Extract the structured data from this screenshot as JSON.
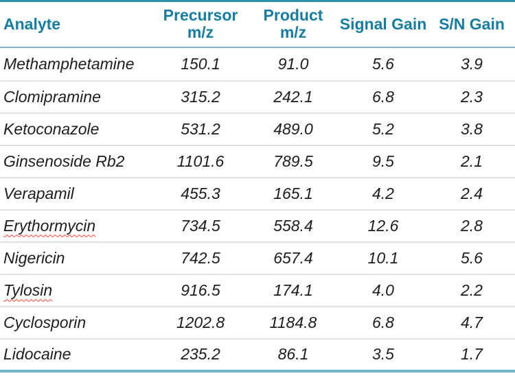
{
  "colors": {
    "header_text": "#157CA4",
    "top_border": "#2F90AE",
    "header_rule": "#7BB5C9",
    "row_rule": "#E2E2E2",
    "bottom_border": "#6FB3CA",
    "body_text": "#1D1D1D",
    "spellcheck_underline": "#FF3B30",
    "background": "#FFFFFF"
  },
  "table": {
    "columns": [
      {
        "label": "Analyte"
      },
      {
        "label": "Precursor\nm/z"
      },
      {
        "label": "Product\nm/z"
      },
      {
        "label": "Signal Gain"
      },
      {
        "label": "S/N Gain"
      }
    ],
    "rows": [
      {
        "analyte": "Methamphetamine",
        "precursor_mz": "150.1",
        "product_mz": "91.0",
        "signal_gain": "5.6",
        "sn_gain": "3.9",
        "misspelled": false
      },
      {
        "analyte": "Clomipramine",
        "precursor_mz": "315.2",
        "product_mz": "242.1",
        "signal_gain": "6.8",
        "sn_gain": "2.3",
        "misspelled": false
      },
      {
        "analyte": "Ketoconazole",
        "precursor_mz": "531.2",
        "product_mz": "489.0",
        "signal_gain": "5.2",
        "sn_gain": "3.8",
        "misspelled": false
      },
      {
        "analyte": "Ginsenoside Rb2",
        "precursor_mz": "1101.6",
        "product_mz": "789.5",
        "signal_gain": "9.5",
        "sn_gain": "2.1",
        "misspelled": false
      },
      {
        "analyte": "Verapamil",
        "precursor_mz": "455.3",
        "product_mz": "165.1",
        "signal_gain": "4.2",
        "sn_gain": "2.4",
        "misspelled": false
      },
      {
        "analyte": "Erythormycin",
        "precursor_mz": "734.5",
        "product_mz": "558.4",
        "signal_gain": "12.6",
        "sn_gain": "2.8",
        "misspelled": true
      },
      {
        "analyte": "Nigericin",
        "precursor_mz": "742.5",
        "product_mz": "657.4",
        "signal_gain": "10.1",
        "sn_gain": "5.6",
        "misspelled": false
      },
      {
        "analyte": "Tylosin",
        "precursor_mz": "916.5",
        "product_mz": "174.1",
        "signal_gain": "4.0",
        "sn_gain": "2.2",
        "misspelled": true
      },
      {
        "analyte": "Cyclosporin",
        "precursor_mz": "1202.8",
        "product_mz": "1184.8",
        "signal_gain": "6.8",
        "sn_gain": "4.7",
        "misspelled": false
      },
      {
        "analyte": "Lidocaine",
        "precursor_mz": "235.2",
        "product_mz": "86.1",
        "signal_gain": "3.5",
        "sn_gain": "1.7",
        "misspelled": false
      }
    ]
  }
}
